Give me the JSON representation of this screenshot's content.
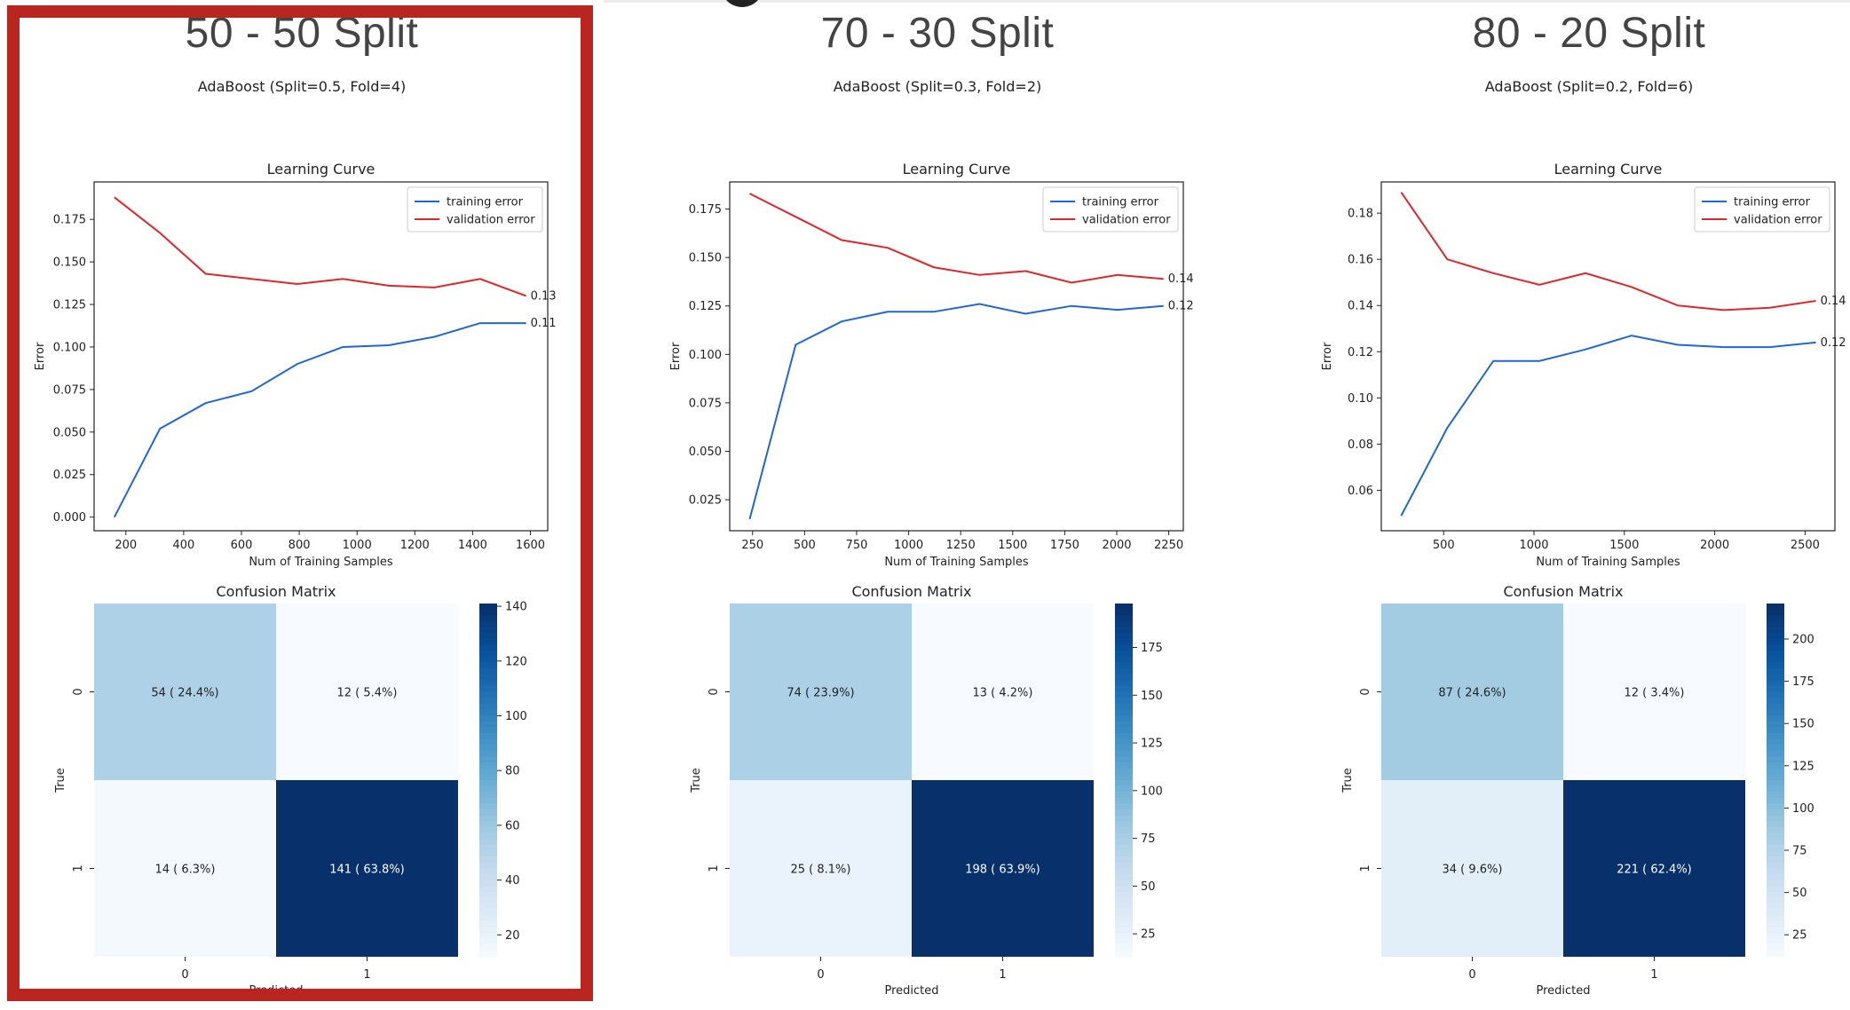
{
  "panels": [
    {
      "title": "50 - 50 Split",
      "subtitle": "AdaBoost (Split=0.5, Fold=4)",
      "highlighted": true,
      "learning_curve": {
        "type": "line",
        "title": "Learning Curve",
        "xlabel": "Num of Training Samples",
        "ylabel": "Error",
        "xlim": [
          90,
          1660
        ],
        "ylim": [
          -0.008,
          0.197
        ],
        "xticks": [
          200,
          400,
          600,
          800,
          1000,
          1200,
          1400,
          1600
        ],
        "yticks": [
          0.0,
          0.025,
          0.05,
          0.075,
          0.1,
          0.125,
          0.15,
          0.175
        ],
        "ytick_labels": [
          "0.000",
          "0.025",
          "0.050",
          "0.075",
          "0.100",
          "0.125",
          "0.150",
          "0.175"
        ],
        "legend_position": "top-right",
        "series": [
          {
            "name": "training error",
            "color": "#1f66d6",
            "x": [
              160,
              318,
              476,
              635,
              793,
              951,
              1110,
              1268,
              1426,
              1585
            ],
            "y": [
              0.0,
              0.052,
              0.067,
              0.074,
              0.09,
              0.1,
              0.101,
              0.106,
              0.114,
              0.114
            ],
            "end_label": "0.11"
          },
          {
            "name": "validation error",
            "color": "#e0262a",
            "x": [
              160,
              318,
              476,
              635,
              793,
              951,
              1110,
              1268,
              1426,
              1585
            ],
            "y": [
              0.188,
              0.167,
              0.143,
              0.14,
              0.137,
              0.14,
              0.136,
              0.135,
              0.14,
              0.13
            ],
            "end_label": "0.13"
          }
        ]
      },
      "confusion_matrix": {
        "type": "heatmap",
        "title": "Confusion Matrix",
        "xlabel": "Predicted",
        "ylabel": "True",
        "x_categories": [
          "0",
          "1"
        ],
        "y_categories": [
          "0",
          "1"
        ],
        "values": [
          [
            54,
            12
          ],
          [
            14,
            141
          ]
        ],
        "labels": [
          [
            "54 ( 24.4%)",
            "12 ( 5.4%)"
          ],
          [
            "14 ( 6.3%)",
            "141 ( 63.8%)"
          ]
        ],
        "colorbar_range": [
          12,
          141
        ],
        "colorbar_ticks": [
          20,
          40,
          60,
          80,
          100,
          120,
          140
        ]
      }
    },
    {
      "title": "70 - 30 Split",
      "subtitle": "AdaBoost (Split=0.3, Fold=2)",
      "highlighted": false,
      "learning_curve": {
        "type": "line",
        "title": "Learning Curve",
        "xlabel": "Num of Training Samples",
        "ylabel": "Error",
        "xlim": [
          140,
          2320
        ],
        "ylim": [
          0.009,
          0.189
        ],
        "xticks": [
          250,
          500,
          750,
          1000,
          1250,
          1500,
          1750,
          2000,
          2250
        ],
        "yticks": [
          0.025,
          0.05,
          0.075,
          0.1,
          0.125,
          0.15,
          0.175
        ],
        "ytick_labels": [
          "0.025",
          "0.050",
          "0.075",
          "0.100",
          "0.125",
          "0.150",
          "0.175"
        ],
        "legend_position": "top-right",
        "series": [
          {
            "name": "training error",
            "color": "#1f66d6",
            "x": [
              236,
              457,
              678,
              899,
              1120,
              1341,
              1562,
              1783,
              2004,
              2225
            ],
            "y": [
              0.015,
              0.105,
              0.117,
              0.122,
              0.122,
              0.126,
              0.121,
              0.125,
              0.123,
              0.125
            ],
            "end_label": "0.12"
          },
          {
            "name": "validation error",
            "color": "#e0262a",
            "x": [
              236,
              457,
              678,
              899,
              1120,
              1341,
              1562,
              1783,
              2004,
              2225
            ],
            "y": [
              0.183,
              0.171,
              0.159,
              0.155,
              0.145,
              0.141,
              0.143,
              0.137,
              0.141,
              0.139
            ],
            "end_label": "0.14"
          }
        ]
      },
      "confusion_matrix": {
        "type": "heatmap",
        "title": "Confusion Matrix",
        "xlabel": "Predicted",
        "ylabel": "True",
        "x_categories": [
          "0",
          "1"
        ],
        "y_categories": [
          "0",
          "1"
        ],
        "values": [
          [
            74,
            13
          ],
          [
            25,
            198
          ]
        ],
        "labels": [
          [
            "74 ( 23.9%)",
            "13 ( 4.2%)"
          ],
          [
            "25 ( 8.1%)",
            "198 ( 63.9%)"
          ]
        ],
        "colorbar_range": [
          13,
          198
        ],
        "colorbar_ticks": [
          25,
          50,
          75,
          100,
          125,
          150,
          175
        ]
      }
    },
    {
      "title": "80 - 20 Split",
      "subtitle": "AdaBoost (Split=0.2, Fold=6)",
      "highlighted": false,
      "learning_curve": {
        "type": "line",
        "title": "Learning Curve",
        "xlabel": "Num of Training Samples",
        "ylabel": "Error",
        "xlim": [
          155,
          2665
        ],
        "ylim": [
          0.0425,
          0.1935
        ],
        "xticks": [
          500,
          1000,
          1500,
          2000,
          2500
        ],
        "yticks": [
          0.06,
          0.08,
          0.1,
          0.12,
          0.14,
          0.16,
          0.18
        ],
        "ytick_labels": [
          "0.06",
          "0.08",
          "0.10",
          "0.12",
          "0.14",
          "0.16",
          "0.18"
        ],
        "legend_position": "top-right",
        "series": [
          {
            "name": "training error",
            "color": "#1f66d6",
            "x": [
              265,
              520,
              775,
              1030,
              1285,
              1540,
              1795,
              2050,
              2305,
              2560
            ],
            "y": [
              0.049,
              0.087,
              0.116,
              0.116,
              0.121,
              0.127,
              0.123,
              0.122,
              0.122,
              0.124
            ],
            "end_label": "0.12"
          },
          {
            "name": "validation error",
            "color": "#e0262a",
            "x": [
              265,
              520,
              775,
              1030,
              1285,
              1540,
              1795,
              2050,
              2305,
              2560
            ],
            "y": [
              0.189,
              0.16,
              0.154,
              0.149,
              0.154,
              0.148,
              0.14,
              0.138,
              0.139,
              0.142
            ],
            "end_label": "0.14"
          }
        ]
      },
      "confusion_matrix": {
        "type": "heatmap",
        "title": "Confusion Matrix",
        "xlabel": "Predicted",
        "ylabel": "True",
        "x_categories": [
          "0",
          "1"
        ],
        "y_categories": [
          "0",
          "1"
        ],
        "values": [
          [
            87,
            12
          ],
          [
            34,
            221
          ]
        ],
        "labels": [
          [
            "87 ( 24.6%)",
            "12 ( 3.4%)"
          ],
          [
            "34 ( 9.6%)",
            "221 ( 62.4%)"
          ]
        ],
        "colorbar_range": [
          12,
          221
        ],
        "colorbar_ticks": [
          25,
          50,
          75,
          100,
          125,
          150,
          175,
          200
        ]
      }
    }
  ],
  "highlight_color": "#b9261f"
}
